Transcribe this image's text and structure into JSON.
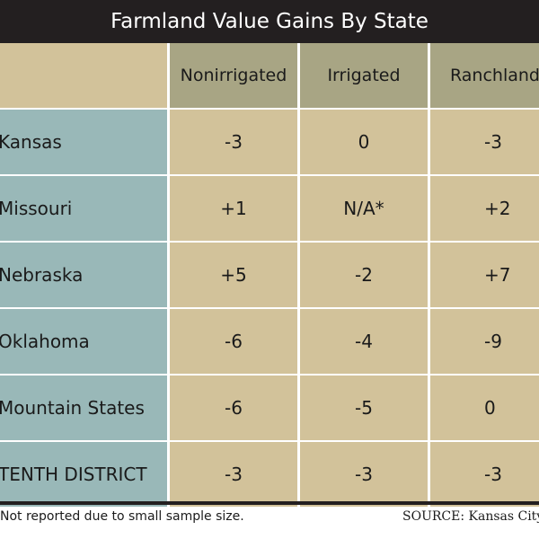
{
  "title": "Farmland Value Gains By State",
  "columns": [
    "Nonirrigated",
    "Irrigated",
    "Ranchland"
  ],
  "rows": [
    {
      "label": "Kansas",
      "values": [
        "-3",
        "0",
        "-3"
      ]
    },
    {
      "label": "Missouri",
      "values": [
        "+1",
        "N/A*",
        "+2"
      ]
    },
    {
      "label": "Nebraska",
      "values": [
        "+5",
        "-2",
        "+7"
      ]
    },
    {
      "label": "Oklahoma",
      "values": [
        "-6",
        "-4",
        "-9"
      ]
    },
    {
      "label": "Mountain States",
      "values": [
        "-6",
        "-5",
        "0"
      ]
    },
    {
      "label": "TENTH DISTRICT",
      "values": [
        "-3",
        "-3",
        "-3"
      ]
    }
  ],
  "footnote": "Not reported due to small sample size.",
  "source": "SOURCE: Kansas City Fe",
  "colors": {
    "title_bg": "#231f20",
    "header_bg": "#a8a584",
    "row_label_bg": "#99b8b8",
    "cell_bg": "#d2c29a"
  },
  "chart_data": {
    "type": "table",
    "title": "Farmland Value Gains By State",
    "columns": [
      "Nonirrigated",
      "Irrigated",
      "Ranchland"
    ],
    "row_labels": [
      "Kansas",
      "Missouri",
      "Nebraska",
      "Oklahoma",
      "Mountain States",
      "TENTH DISTRICT"
    ],
    "values": [
      [
        -3,
        0,
        -3
      ],
      [
        1,
        null,
        2
      ],
      [
        5,
        -2,
        7
      ],
      [
        -6,
        -4,
        -9
      ],
      [
        -6,
        -5,
        0
      ],
      [
        -3,
        -3,
        -3
      ]
    ]
  }
}
